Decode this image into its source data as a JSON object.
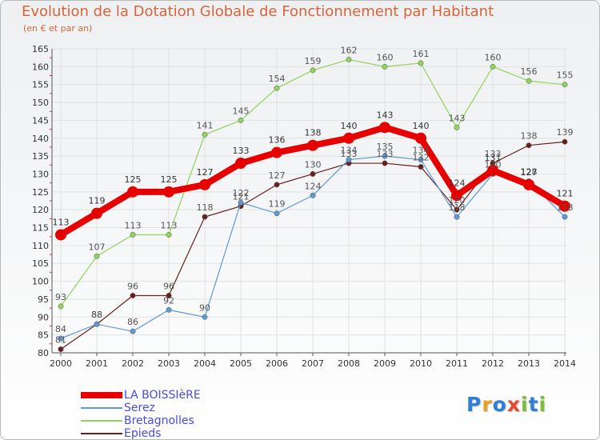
{
  "title": "Evolution de la Dotation Globale de Fonctionnement par Habitant",
  "subtitle": "(en € et par an)",
  "logo": {
    "letters": [
      "P",
      "r",
      "o",
      "x",
      "i",
      "t",
      "i"
    ],
    "colors": [
      "#2e7fd6",
      "#e6a11d",
      "#2e7fd6",
      "#e34a2f",
      "#7bbf3a",
      "#2e7fd6",
      "#7bbf3a"
    ]
  },
  "chart_data": {
    "type": "line",
    "title": "Evolution de la Dotation Globale de Fonctionnement par Habitant",
    "subtitle": "(en € et par an)",
    "x": [
      "2000",
      "2001",
      "2002",
      "2003",
      "2004",
      "2005",
      "2006",
      "2007",
      "2008",
      "2009",
      "2010",
      "2011",
      "2012",
      "2013",
      "2014"
    ],
    "ylim": [
      80,
      165
    ],
    "yticks": [
      80,
      85,
      90,
      95,
      100,
      105,
      110,
      115,
      120,
      125,
      130,
      135,
      140,
      145,
      150,
      155,
      160,
      165
    ],
    "grid": true,
    "legend_position": "bottom-left",
    "series": [
      {
        "name": "LA BOISSIèRE",
        "color": "#e60000",
        "values": [
          113,
          119,
          125,
          125,
          127,
          133,
          136,
          138,
          140,
          143,
          140,
          124,
          131,
          127,
          121
        ]
      },
      {
        "name": "Serez",
        "color": "#5b9bd5",
        "values": [
          84,
          88,
          86,
          92,
          90,
          122,
          119,
          124,
          134,
          135,
          134,
          118,
          130,
          128,
          118
        ]
      },
      {
        "name": "Bretagnolles",
        "color": "#8fd45c",
        "values": [
          93,
          107,
          113,
          113,
          141,
          145,
          154,
          159,
          162,
          160,
          161,
          143,
          160,
          156,
          155
        ]
      },
      {
        "name": "Epieds",
        "color": "#6b1f1f",
        "values": [
          81,
          88,
          96,
          96,
          118,
          121,
          127,
          130,
          133,
          133,
          132,
          120,
          133,
          138,
          139
        ]
      }
    ]
  }
}
